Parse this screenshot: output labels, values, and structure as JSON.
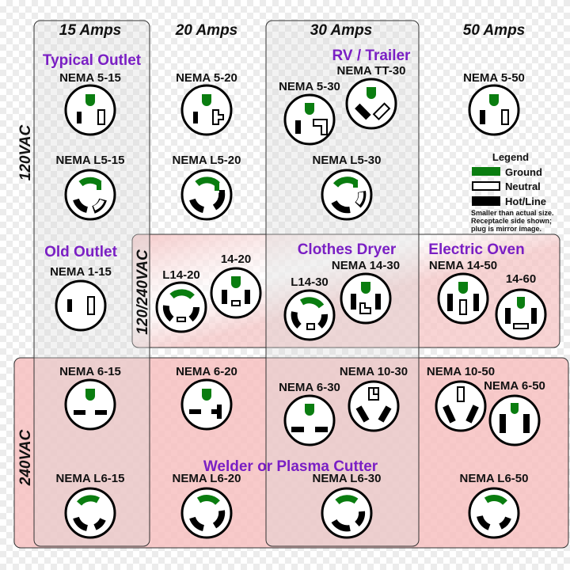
{
  "columns": [
    "15 Amps",
    "20 Amps",
    "30 Amps",
    "50 Amps"
  ],
  "voltages": [
    "120VAC",
    "120/240VAC",
    "240VAC"
  ],
  "categories": {
    "typical_outlet": "Typical Outlet",
    "rv_trailer": "RV / Trailer",
    "old_outlet": "Old Outlet",
    "clothes_dryer": "Clothes Dryer",
    "electric_oven": "Electric Oven",
    "welder": "Welder or Plasma Cutter"
  },
  "receptacles": {
    "nema_5_15": "NEMA 5-15",
    "nema_5_20": "NEMA 5-20",
    "nema_5_30": "NEMA 5-30",
    "nema_tt_30": "NEMA TT-30",
    "nema_5_50": "NEMA 5-50",
    "nema_l5_15": "NEMA L5-15",
    "nema_l5_20": "NEMA L5-20",
    "nema_l5_30": "NEMA L5-30",
    "nema_1_15": "NEMA 1-15",
    "l14_20": "L14-20",
    "r14_20": "14-20",
    "l14_30": "L14-30",
    "nema_14_30": "NEMA 14-30",
    "nema_14_50": "NEMA 14-50",
    "r14_60": "14-60",
    "nema_6_15": "NEMA 6-15",
    "nema_6_20": "NEMA 6-20",
    "nema_6_30": "NEMA 6-30",
    "nema_10_30": "NEMA 10-30",
    "nema_10_50": "NEMA 10-50",
    "nema_6_50": "NEMA 6-50",
    "nema_l6_15": "NEMA L6-15",
    "nema_l6_20": "NEMA L6-20",
    "nema_l6_30": "NEMA L6-30",
    "nema_l6_50": "NEMA L6-50"
  },
  "legend": {
    "title": "Legend",
    "ground": "Ground",
    "neutral": "Neutral",
    "hot": "Hot/Line",
    "note_1": "Smaller than actual size.",
    "note_2": "Receptacle side shown;",
    "note_3": "plug is mirror image."
  },
  "colors": {
    "ground": "#0a7d10",
    "category_text": "#7a1fc4",
    "region_240": "#f6b8b8",
    "region_120_240": "#f8c8c8"
  }
}
